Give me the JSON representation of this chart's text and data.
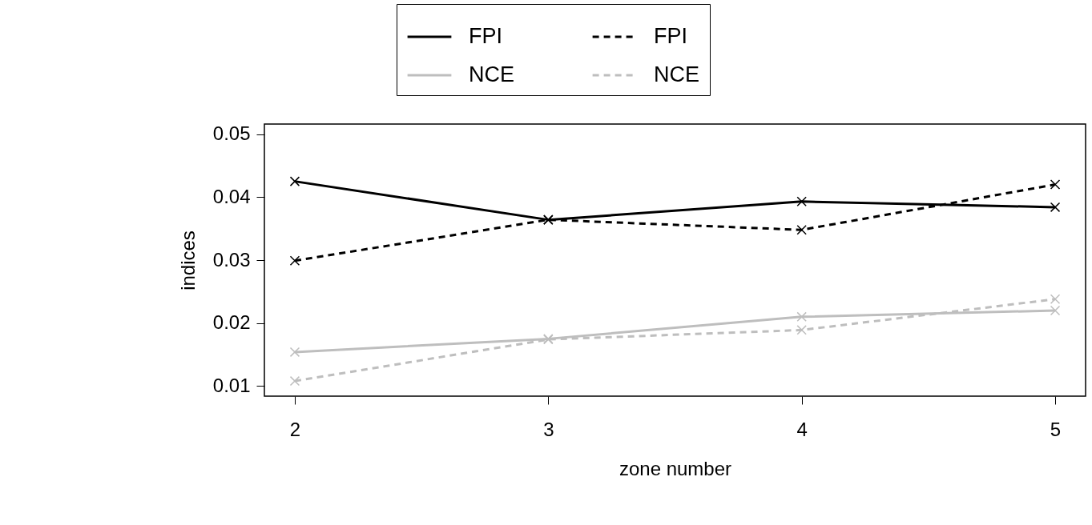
{
  "chart_data": {
    "type": "line",
    "xlabel": "zone number",
    "ylabel": "indices",
    "x": [
      2,
      3,
      4,
      5
    ],
    "xlim": [
      1.88,
      5.12
    ],
    "xticks": [
      2,
      3,
      4,
      5
    ],
    "ylim": [
      0.0084,
      0.0516
    ],
    "yticks": [
      0.01,
      0.02,
      0.03,
      0.04,
      0.05
    ],
    "grid": false,
    "legend": "top",
    "marker": "cross",
    "series": [
      {
        "name": "FPI",
        "color": "#000000",
        "line_style": "solid",
        "values": [
          0.0425,
          0.0364,
          0.0393,
          0.0384
        ]
      },
      {
        "name": "FPI",
        "color": "#000000",
        "line_style": "dashed",
        "values": [
          0.0299,
          0.0364,
          0.0348,
          0.042
        ]
      },
      {
        "name": "NCE",
        "color": "#bebebe",
        "line_style": "solid",
        "values": [
          0.0154,
          0.0175,
          0.021,
          0.022
        ]
      },
      {
        "name": "NCE",
        "color": "#bebebe",
        "line_style": "dashed",
        "values": [
          0.0108,
          0.0174,
          0.0189,
          0.0238
        ]
      }
    ]
  }
}
